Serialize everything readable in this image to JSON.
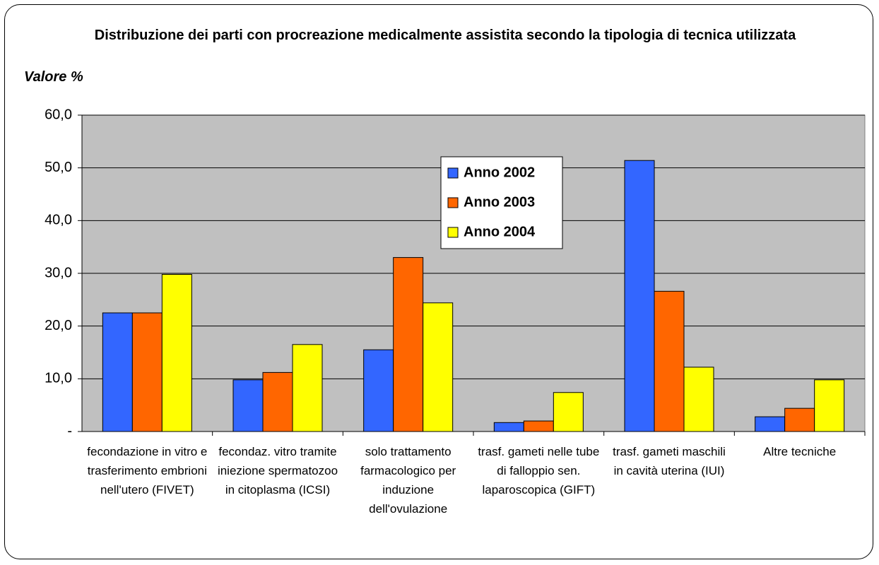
{
  "chart_data": {
    "type": "bar",
    "title": "Distribuzione dei parti con procreazione medicalmente assistita secondo la tipologia di tecnica utilizzata",
    "y_label": "Valore %",
    "categories": [
      "fecondazione in vitro e trasferimento embrioni nell'utero (FIVET)",
      "fecondaz. vitro tramite iniezione spermatozoo in citoplasma (ICSI)",
      "solo trattamento farmacologico per induzione dell'ovulazione",
      "trasf. gameti nelle tube di falloppio sen. laparoscopica (GIFT)",
      "trasf. gameti maschili in cavità uterina (IUI)",
      "Altre tecniche"
    ],
    "series": [
      {
        "name": "Anno 2002",
        "color": "#3366ff",
        "values": [
          22.5,
          9.8,
          15.5,
          1.7,
          51.4,
          2.8
        ]
      },
      {
        "name": "Anno 2003",
        "color": "#ff6600",
        "values": [
          22.5,
          11.2,
          33.0,
          2.0,
          26.6,
          4.4
        ]
      },
      {
        "name": "Anno 2004",
        "color": "#ffff00",
        "values": [
          29.8,
          16.5,
          24.4,
          7.4,
          12.2,
          9.8
        ]
      }
    ],
    "ylim": [
      0,
      60
    ],
    "yticks": [
      {
        "value": 0,
        "label": "-"
      },
      {
        "value": 10,
        "label": "10,0"
      },
      {
        "value": 20,
        "label": "20,0"
      },
      {
        "value": 30,
        "label": "30,0"
      },
      {
        "value": 40,
        "label": "40,0"
      },
      {
        "value": 50,
        "label": "50,0"
      },
      {
        "value": 60,
        "label": "60,0"
      }
    ],
    "grid": true,
    "legend": "top-center"
  }
}
